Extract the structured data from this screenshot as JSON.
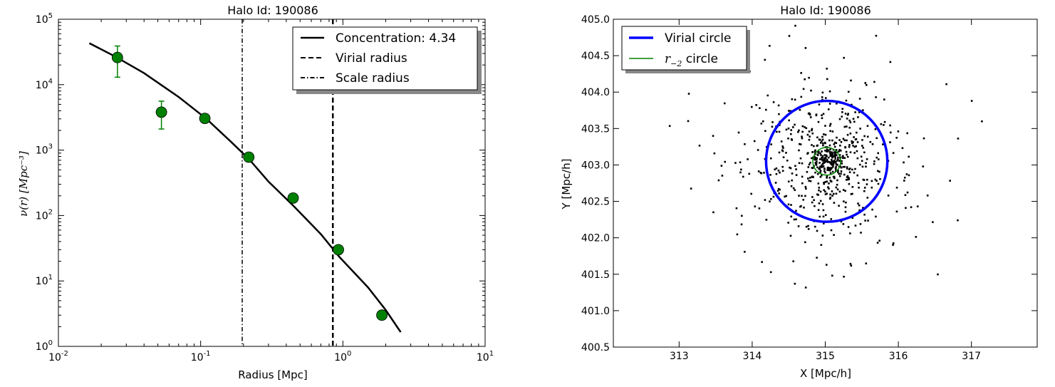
{
  "chart_data": [
    {
      "type": "line",
      "title": "Halo Id: 190086",
      "xlabel": "Radius [Mpc]",
      "ylabel": "ν(r) [Mpc⁻³]",
      "xscale": "log",
      "yscale": "log",
      "xlim": [
        0.01,
        10
      ],
      "ylim": [
        1,
        100000
      ],
      "x_tick_labels": [
        {
          "value": 0.01,
          "base": "10",
          "exp": "-2"
        },
        {
          "value": 0.1,
          "base": "10",
          "exp": "-1"
        },
        {
          "value": 1,
          "base": "10",
          "exp": "0"
        },
        {
          "value": 10,
          "base": "10",
          "exp": "1"
        }
      ],
      "y_tick_labels": [
        {
          "value": 1,
          "base": "10",
          "exp": "0"
        },
        {
          "value": 10,
          "base": "10",
          "exp": "1"
        },
        {
          "value": 100,
          "base": "10",
          "exp": "2"
        },
        {
          "value": 1000,
          "base": "10",
          "exp": "3"
        },
        {
          "value": 10000,
          "base": "10",
          "exp": "4"
        },
        {
          "value": 100000,
          "base": "10",
          "exp": "5"
        }
      ],
      "legend_position": "top-right",
      "legend": [
        {
          "label": "Concentration: 4.34",
          "style": "solid"
        },
        {
          "label": "Virial radius",
          "style": "dashed"
        },
        {
          "label": "Scale radius",
          "style": "dashdot"
        }
      ],
      "profile_curve": {
        "x": [
          0.0165,
          0.025,
          0.04,
          0.07,
          0.11,
          0.16,
          0.22,
          0.3,
          0.45,
          0.7,
          0.95,
          1.5,
          2.0,
          2.55
        ],
        "y": [
          43000,
          27000,
          15000,
          6500,
          3000,
          1400,
          720,
          330,
          140,
          52,
          23,
          8,
          3.6,
          1.65
        ]
      },
      "data_points": {
        "x": [
          0.026,
          0.053,
          0.107,
          0.218,
          0.447,
          0.93,
          1.88
        ],
        "y": [
          26000,
          3800,
          3050,
          780,
          185,
          30,
          3.0
        ],
        "yerr_low": [
          13000,
          2100,
          null,
          null,
          null,
          null,
          null
        ],
        "yerr_high": [
          39000,
          5600,
          null,
          null,
          null,
          null,
          null
        ],
        "color": "#008000"
      },
      "virial_radius": 0.85,
      "scale_radius": 0.196
    },
    {
      "type": "scatter",
      "title": "Halo Id: 190086",
      "xlabel": "X [Mpc/h]",
      "ylabel": "Y [Mpc/h]",
      "xlim": [
        312.1,
        317.9
      ],
      "ylim": [
        400.5,
        405.0
      ],
      "x_ticks": [
        "313",
        "314",
        "315",
        "316",
        "317"
      ],
      "y_ticks": [
        "400.5",
        "401.0",
        "401.5",
        "402.0",
        "402.5",
        "403.0",
        "403.5",
        "404.0",
        "404.5",
        "405.0"
      ],
      "legend_position": "top-left",
      "legend": [
        {
          "label": "Virial circle",
          "color": "#0000ff"
        },
        {
          "label": "circle",
          "math": "r",
          "math_sub": "−2",
          "color": "#008000"
        }
      ],
      "virial_circle": {
        "cx": 315.02,
        "cy": 403.05,
        "r": 0.83,
        "color": "#0000ff"
      },
      "r2_circle": {
        "cx": 315.02,
        "cy": 403.05,
        "r": 0.19,
        "color": "#008000"
      },
      "particles_approx_count": 700,
      "particle_color": "#000000"
    }
  ]
}
